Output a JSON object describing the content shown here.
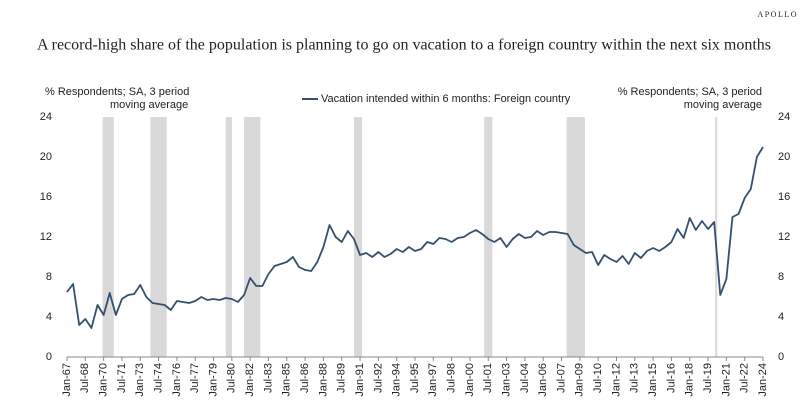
{
  "brand": "APOLLO",
  "chart_data": {
    "type": "line",
    "title": "A record-high share of the population is planning to go on vacation to a foreign country within the next six months",
    "y_label": [
      "% Respondents; SA, 3 period",
      "moving average"
    ],
    "y2_label": [
      "% Respondents; SA, 3 period",
      "moving average"
    ],
    "legend": "top",
    "x": [
      "1967-01",
      "1967-07",
      "1968-01",
      "1968-07",
      "1969-01",
      "1969-07",
      "1970-01",
      "1970-07",
      "1971-01",
      "1971-07",
      "1972-01",
      "1972-07",
      "1973-01",
      "1973-07",
      "1974-01",
      "1974-07",
      "1975-01",
      "1975-07",
      "1976-01",
      "1976-07",
      "1977-01",
      "1977-07",
      "1978-01",
      "1978-07",
      "1979-01",
      "1979-07",
      "1980-01",
      "1980-07",
      "1981-01",
      "1981-07",
      "1982-01",
      "1982-07",
      "1983-01",
      "1983-07",
      "1984-01",
      "1984-07",
      "1985-01",
      "1985-07",
      "1986-01",
      "1986-07",
      "1987-01",
      "1987-07",
      "1988-01",
      "1988-07",
      "1989-01",
      "1989-07",
      "1990-01",
      "1990-07",
      "1991-01",
      "1991-07",
      "1992-01",
      "1992-07",
      "1993-01",
      "1993-07",
      "1994-01",
      "1994-07",
      "1995-01",
      "1995-07",
      "1996-01",
      "1996-07",
      "1997-01",
      "1997-07",
      "1998-01",
      "1998-07",
      "1999-01",
      "1999-07",
      "2000-01",
      "2000-07",
      "2001-01",
      "2001-07",
      "2002-01",
      "2002-07",
      "2003-01",
      "2003-07",
      "2004-01",
      "2004-07",
      "2005-01",
      "2005-07",
      "2006-01",
      "2006-07",
      "2007-01",
      "2007-07",
      "2008-01",
      "2008-07",
      "2009-01",
      "2009-07",
      "2010-01",
      "2010-07",
      "2011-01",
      "2011-07",
      "2012-01",
      "2012-07",
      "2013-01",
      "2013-07",
      "2014-01",
      "2014-07",
      "2015-01",
      "2015-07",
      "2016-01",
      "2016-07",
      "2017-01",
      "2017-07",
      "2018-01",
      "2018-07",
      "2019-01",
      "2019-07",
      "2020-01",
      "2020-07",
      "2021-01",
      "2021-07",
      "2022-01",
      "2022-07",
      "2023-01",
      "2023-07",
      "2024-01"
    ],
    "series": [
      {
        "name": "Vacation intended within 6 months: Foreign country",
        "color": "#34506e",
        "values": [
          6.5,
          7.3,
          3.2,
          3.8,
          2.9,
          5.2,
          4.2,
          6.4,
          4.2,
          5.8,
          6.2,
          6.3,
          7.2,
          6.0,
          5.4,
          5.3,
          5.2,
          4.7,
          5.6,
          5.5,
          5.4,
          5.6,
          6.0,
          5.7,
          5.8,
          5.7,
          5.9,
          5.8,
          5.5,
          6.2,
          7.9,
          7.1,
          7.1,
          8.3,
          9.1,
          9.3,
          9.5,
          10.0,
          9.0,
          8.7,
          8.6,
          9.5,
          11.0,
          13.2,
          12.0,
          11.5,
          12.6,
          11.8,
          10.2,
          10.4,
          10.0,
          10.5,
          10.0,
          10.3,
          10.8,
          10.5,
          11.0,
          10.6,
          10.8,
          11.5,
          11.3,
          11.9,
          11.8,
          11.5,
          11.9,
          12.0,
          12.4,
          12.7,
          12.3,
          11.8,
          11.5,
          11.9,
          11.0,
          11.8,
          12.3,
          11.9,
          12.0,
          12.6,
          12.2,
          12.5,
          12.5,
          12.4,
          12.3,
          11.2,
          10.8,
          10.4,
          10.5,
          9.2,
          10.2,
          9.8,
          9.5,
          10.1,
          9.3,
          10.4,
          9.9,
          10.6,
          10.9,
          10.6,
          11.0,
          11.5,
          12.8,
          11.9,
          13.9,
          12.7,
          13.6,
          12.8,
          13.5,
          6.2,
          7.8,
          14.0,
          14.3,
          15.9,
          16.8,
          20.0,
          21.0
        ]
      }
    ],
    "shading": [
      {
        "start": "1969-12",
        "end": "1970-11"
      },
      {
        "start": "1973-11",
        "end": "1975-03"
      },
      {
        "start": "1980-01",
        "end": "1980-07"
      },
      {
        "start": "1981-07",
        "end": "1982-11"
      },
      {
        "start": "1990-07",
        "end": "1991-03"
      },
      {
        "start": "2001-03",
        "end": "2001-11"
      },
      {
        "start": "2007-12",
        "end": "2009-06"
      },
      {
        "start": "2020-02",
        "end": "2020-04"
      }
    ],
    "xlim": [
      "1967-01",
      "2024-01"
    ],
    "xticks": [
      {
        "value": "1967-01",
        "label": "Jan-67"
      },
      {
        "value": "1968-07",
        "label": "Jul-68"
      },
      {
        "value": "1970-01",
        "label": "Jan-70"
      },
      {
        "value": "1971-07",
        "label": "Jul-71"
      },
      {
        "value": "1973-01",
        "label": "Jan-73"
      },
      {
        "value": "1974-07",
        "label": "Jul-74"
      },
      {
        "value": "1976-01",
        "label": "Jan-76"
      },
      {
        "value": "1977-07",
        "label": "Jul-77"
      },
      {
        "value": "1979-01",
        "label": "Jan-79"
      },
      {
        "value": "1980-07",
        "label": "Jul-80"
      },
      {
        "value": "1982-01",
        "label": "Jan-82"
      },
      {
        "value": "1983-07",
        "label": "Jul-83"
      },
      {
        "value": "1985-01",
        "label": "Jan-85"
      },
      {
        "value": "1986-07",
        "label": "Jul-86"
      },
      {
        "value": "1988-01",
        "label": "Jan-88"
      },
      {
        "value": "1989-07",
        "label": "Jul-89"
      },
      {
        "value": "1991-01",
        "label": "Jan-91"
      },
      {
        "value": "1992-07",
        "label": "Jul-92"
      },
      {
        "value": "1994-01",
        "label": "Jan-94"
      },
      {
        "value": "1995-07",
        "label": "Jul-95"
      },
      {
        "value": "1997-01",
        "label": "Jan-97"
      },
      {
        "value": "1998-07",
        "label": "Jul-98"
      },
      {
        "value": "2000-01",
        "label": "Jan-00"
      },
      {
        "value": "2001-07",
        "label": "Jul-01"
      },
      {
        "value": "2003-01",
        "label": "Jan-03"
      },
      {
        "value": "2004-07",
        "label": "Jul-04"
      },
      {
        "value": "2006-01",
        "label": "Jan-06"
      },
      {
        "value": "2007-07",
        "label": "Jul-07"
      },
      {
        "value": "2009-01",
        "label": "Jan-09"
      },
      {
        "value": "2010-07",
        "label": "Jul-10"
      },
      {
        "value": "2012-01",
        "label": "Jan-12"
      },
      {
        "value": "2013-07",
        "label": "Jul-13"
      },
      {
        "value": "2015-01",
        "label": "Jan-15"
      },
      {
        "value": "2016-07",
        "label": "Jul-16"
      },
      {
        "value": "2018-01",
        "label": "Jan-18"
      },
      {
        "value": "2019-07",
        "label": "Jul-19"
      },
      {
        "value": "2021-01",
        "label": "Jan-21"
      },
      {
        "value": "2022-07",
        "label": "Jul-22"
      },
      {
        "value": "2024-01",
        "label": "Jan-24"
      }
    ],
    "ylim": [
      0,
      24
    ],
    "yticks": [
      0,
      4,
      8,
      12,
      16,
      20,
      24
    ],
    "y2lim": [
      0,
      24
    ],
    "y2ticks": [
      0,
      4,
      8,
      12,
      16,
      20,
      24
    ],
    "grid": false
  }
}
